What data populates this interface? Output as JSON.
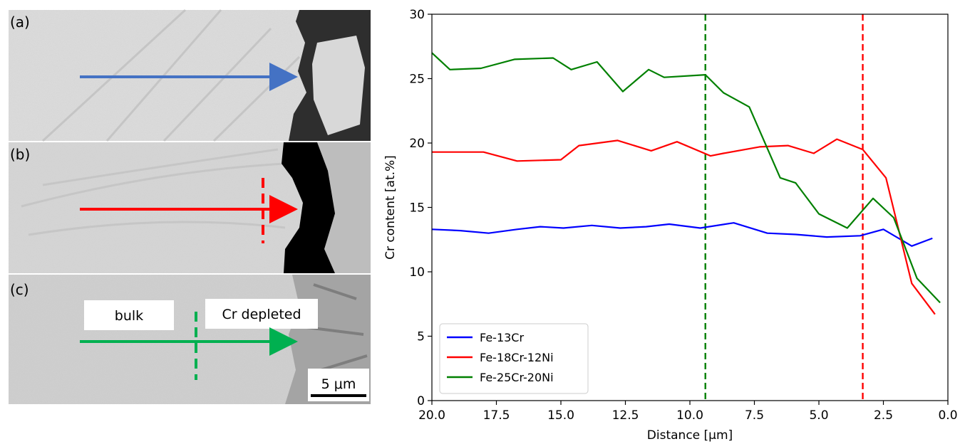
{
  "micrographs": {
    "panels": [
      {
        "label": "(a)",
        "arrow_color": "#4472c4"
      },
      {
        "label": "(b)",
        "arrow_color": "#ff0000"
      },
      {
        "label": "(c)",
        "arrow_color": "#00b050"
      }
    ],
    "annotations": {
      "bulk": "bulk",
      "cr_depleted": "Cr depleted"
    },
    "scale_bar": "5 μm"
  },
  "chart_data": {
    "type": "line",
    "xlabel": "Distance [μm]",
    "ylabel": "Cr content [at.%]",
    "xlim": [
      20.0,
      0.0
    ],
    "ylim": [
      0,
      30
    ],
    "x_reversed": true,
    "x_ticks": [
      "20.0",
      "17.5",
      "15.0",
      "12.5",
      "10.0",
      "7.5",
      "5.0",
      "2.5",
      "0.0"
    ],
    "y_ticks": [
      "0",
      "5",
      "10",
      "15",
      "20",
      "25",
      "30"
    ],
    "grid": false,
    "legend_position": "bottom-left",
    "series": [
      {
        "name": "Fe-13Cr",
        "color": "#0000ff",
        "x": [
          20.0,
          18.9,
          17.8,
          16.7,
          15.8,
          14.9,
          13.8,
          12.7,
          11.7,
          10.8,
          9.6,
          8.3,
          7.0,
          5.9,
          4.7,
          3.4,
          2.5,
          1.4,
          0.6
        ],
        "y": [
          13.3,
          13.2,
          13.0,
          13.3,
          13.5,
          13.4,
          13.6,
          13.4,
          13.5,
          13.7,
          13.4,
          13.8,
          13.0,
          12.9,
          12.7,
          12.8,
          13.3,
          12.0,
          12.6
        ]
      },
      {
        "name": "Fe-18Cr-12Ni",
        "color": "#ff0000",
        "x": [
          20.0,
          19.1,
          18.0,
          16.7,
          15.0,
          14.3,
          12.8,
          11.5,
          10.5,
          9.2,
          8.7,
          7.3,
          6.2,
          5.2,
          4.3,
          3.3,
          2.4,
          1.4,
          0.5
        ],
        "y": [
          19.3,
          19.3,
          19.3,
          18.6,
          18.7,
          19.8,
          20.2,
          19.4,
          20.1,
          19.0,
          19.2,
          19.7,
          19.8,
          19.2,
          20.3,
          19.5,
          17.3,
          9.1,
          6.7
        ]
      },
      {
        "name": "Fe-25Cr-20Ni",
        "color": "#008000",
        "x": [
          20.0,
          19.3,
          18.1,
          16.8,
          15.3,
          14.6,
          13.6,
          12.6,
          11.6,
          11.0,
          9.4,
          8.7,
          7.7,
          6.5,
          5.9,
          5.0,
          3.9,
          2.9,
          2.1,
          1.2,
          0.3
        ],
        "y": [
          27.0,
          25.7,
          25.8,
          26.5,
          26.6,
          25.7,
          26.3,
          24.0,
          25.7,
          25.1,
          25.3,
          23.9,
          22.8,
          17.3,
          16.9,
          14.5,
          13.4,
          15.7,
          14.2,
          9.5,
          7.6
        ]
      }
    ],
    "vlines": [
      {
        "x": 9.4,
        "color": "#008000",
        "style": "dashed"
      },
      {
        "x": 3.3,
        "color": "#ff0000",
        "style": "dashed"
      }
    ]
  }
}
